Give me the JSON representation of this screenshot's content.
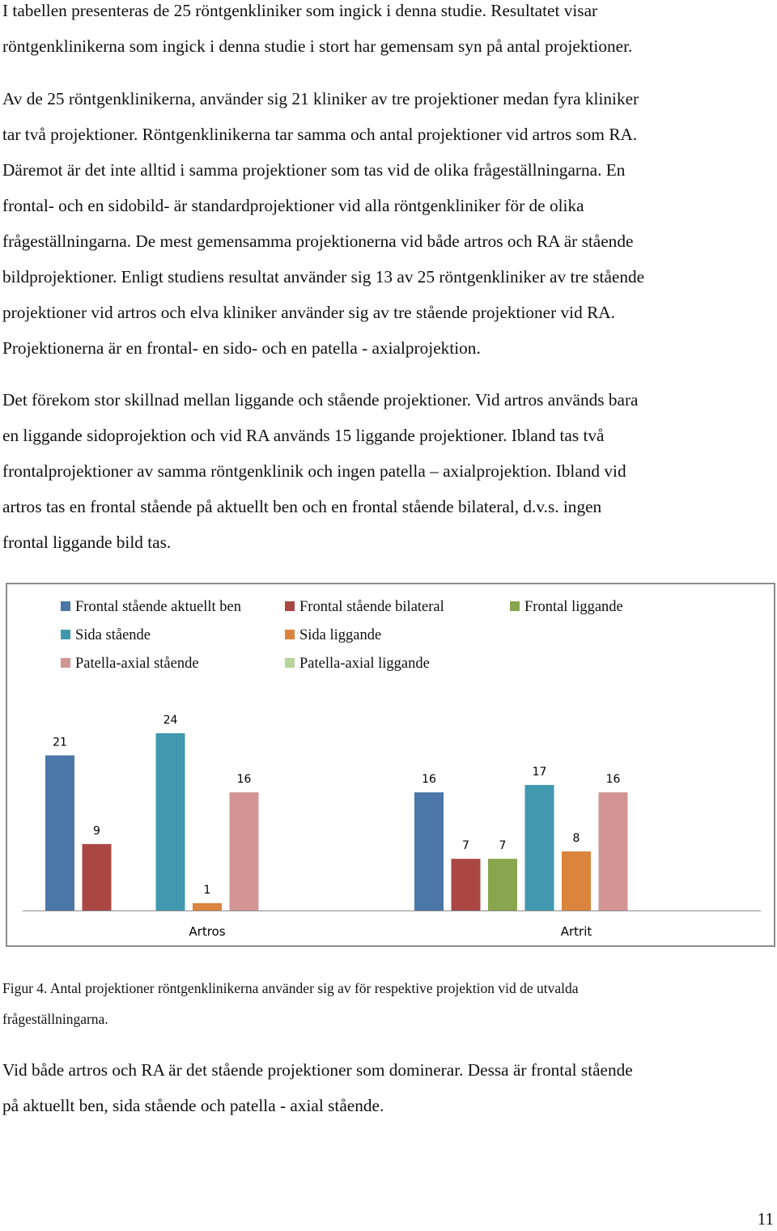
{
  "paragraphs": [
    [
      "I tabellen presenteras de 25 röntgenkliniker som ingick i denna studie. Resultatet visar",
      "röntgenklinikerna som ingick i denna studie i stort har gemensam syn på antal projektioner."
    ],
    [
      "Av de 25 röntgenklinikerna, använder sig 21 kliniker av tre projektioner medan fyra kliniker",
      "tar två projektioner. Röntgenklinikerna tar samma och antal projektioner vid artros som RA.",
      "Däremot är det inte alltid i samma projektioner som tas vid de olika frågeställningarna. En",
      "frontal- och en sidobild- är standardprojektioner vid alla röntgenkliniker för de olika",
      "frågeställningarna. De mest gemensamma projektionerna vid både artros och RA är stående",
      "bildprojektioner. Enligt studiens resultat använder sig 13 av 25 röntgenkliniker av tre stående",
      "projektioner vid artros och elva kliniker använder sig av tre stående projektioner vid RA.",
      "Projektionerna är en frontal- en sido- och en patella - axialprojektion."
    ],
    [
      "Det förekom stor skillnad mellan liggande och stående projektioner. Vid artros används bara",
      "en liggande sidoprojektion och vid RA används 15 liggande projektioner. Ibland tas två",
      "frontalprojektioner av samma röntgenklinik och ingen patella – axialprojektion. Ibland vid",
      "artros tas en frontal stående på aktuellt ben och en frontal stående bilateral, d.v.s. ingen",
      "frontal liggande bild tas."
    ]
  ],
  "chart_data": {
    "type": "bar",
    "categories": [
      "Artros",
      "Artrit"
    ],
    "series": [
      {
        "name": "Frontal stående aktuellt ben",
        "color": "#4a76a8",
        "values": [
          21,
          16
        ]
      },
      {
        "name": "Frontal stående bilateral",
        "color": "#ab4743",
        "values": [
          9,
          7
        ]
      },
      {
        "name": "Frontal liggande",
        "color": "#89a54e",
        "values": [
          0,
          7
        ]
      },
      {
        "name": "Sida stående",
        "color": "#4298af",
        "values": [
          24,
          17
        ]
      },
      {
        "name": "Sida liggande",
        "color": "#db843d",
        "values": [
          1,
          8
        ]
      },
      {
        "name": "Patella-axial stående",
        "color": "#d39594",
        "values": [
          16,
          16
        ]
      },
      {
        "name": "Patella-axial liggande",
        "color": "#b7d49b",
        "values": [
          0,
          0
        ]
      }
    ],
    "ylim": [
      0,
      24
    ],
    "legend_position": "top",
    "grid": false
  },
  "caption_lines": [
    "Figur 4. Antal projektioner röntgenklinikerna använder sig av för respektive projektion vid de utvalda",
    "frågeställningarna."
  ],
  "closing_paragraph": [
    "Vid både artros och RA är det stående projektioner som dominerar. Dessa är frontal stående",
    "på aktuellt ben, sida stående och patella - axial stående."
  ],
  "page_number": "11"
}
